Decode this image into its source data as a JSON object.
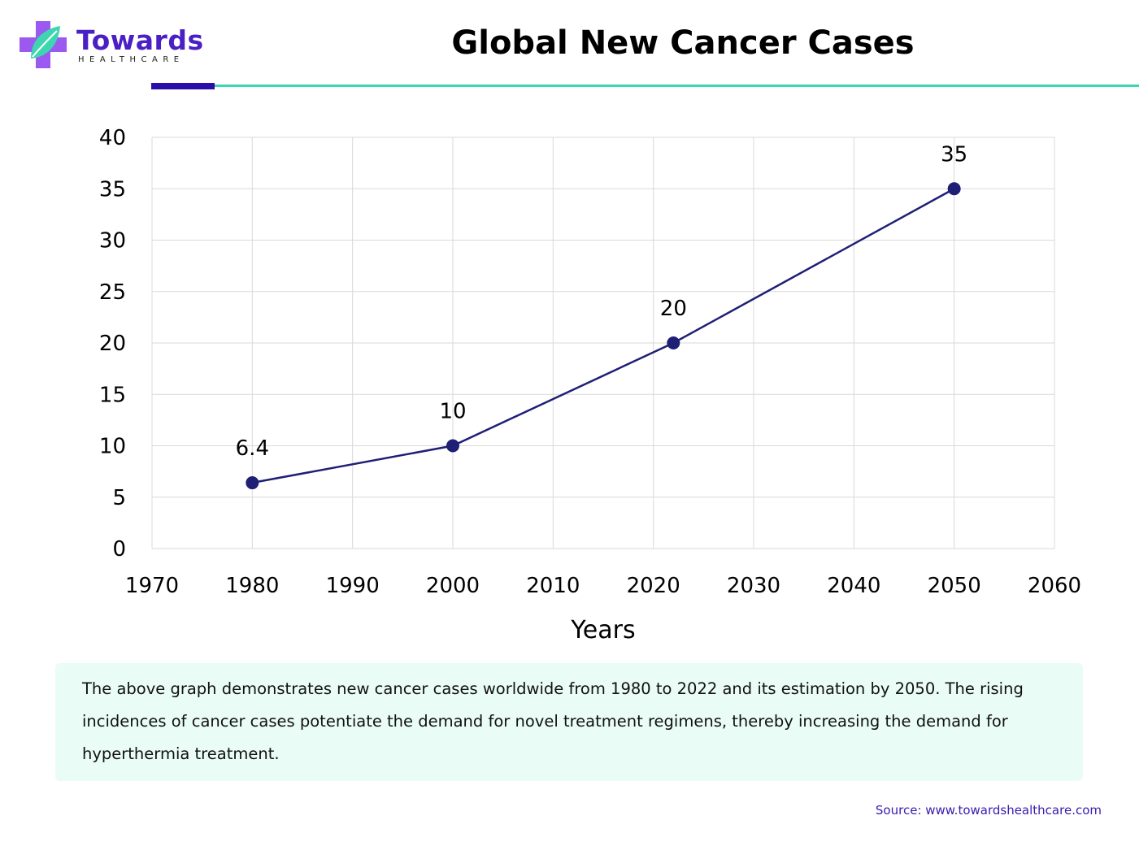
{
  "brand": {
    "name": "Towards",
    "subtitle": "HEALTHCARE",
    "colors": {
      "primary": "#4a1fc4",
      "teal": "#3ed6b0",
      "purple_light": "#9b59f0"
    }
  },
  "title": "Global New Cancer Cases",
  "chart_data": {
    "type": "line",
    "title": "Global New Cancer Cases",
    "xlabel": "Years",
    "ylabel": "",
    "x": [
      1980,
      2000,
      2022,
      2050
    ],
    "series": [
      {
        "name": "New cancer cases",
        "values": [
          6.4,
          10,
          20,
          35
        ],
        "color": "#1f1f75"
      }
    ],
    "data_labels": [
      "6.4",
      "10",
      "20",
      "35"
    ],
    "xlim": [
      1970,
      2060
    ],
    "ylim": [
      0,
      40
    ],
    "x_ticks": [
      1970,
      1980,
      1990,
      2000,
      2010,
      2020,
      2030,
      2040,
      2050,
      2060
    ],
    "y_ticks": [
      0,
      5,
      10,
      15,
      20,
      25,
      30,
      35,
      40
    ],
    "grid": true,
    "legend": "none"
  },
  "description": "The above graph demonstrates new cancer cases worldwide from 1980 to 2022 and its estimation by 2050. The rising incidences of cancer cases potentiate the demand for novel treatment regimens, thereby increasing the demand for hyperthermia treatment.",
  "source": "Source: www.towardshealthcare.com"
}
